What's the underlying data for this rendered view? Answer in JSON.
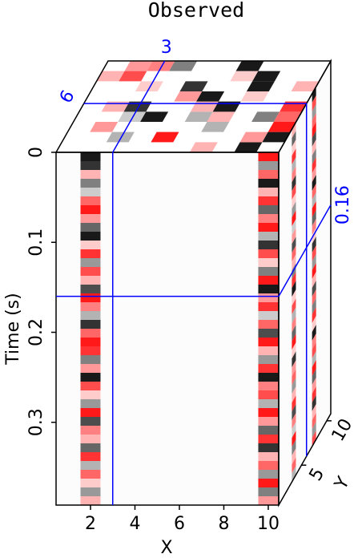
{
  "chart_data": {
    "type": "cube",
    "title": "Observed",
    "xlabel": "X",
    "ylabel": "Time (s)",
    "zlabel": "Y",
    "xlim": [
      0.45,
      10.47
    ],
    "xticks": [
      2,
      4,
      6,
      8,
      10
    ],
    "ylim": [
      0,
      0.392
    ],
    "yticks": [
      0,
      0.1,
      0.2,
      0.3
    ],
    "zlim": [
      0.5,
      10.8
    ],
    "zticks": [
      5,
      10
    ],
    "slices": {
      "x": 3,
      "y": 6,
      "time": 0.16
    },
    "slice_color": "#0000ff",
    "front_traces": [
      {
        "x": 2,
        "values": [
          -0.9,
          -0.8,
          0.3,
          -0.5,
          -0.2,
          0.6,
          0.9,
          0.4,
          -0.6,
          -0.9,
          0.2,
          0.8,
          -0.4,
          0.7,
          0.3,
          -0.7,
          0.9,
          0.5,
          -0.3,
          -0.8,
          0.6,
          0.9,
          0.8,
          -0.5,
          0.4,
          -0.9,
          0.7,
          0.2,
          -0.4,
          0.9,
          -0.7,
          0.5,
          0.3,
          -0.6,
          0.8,
          -0.3,
          0.6,
          0.2,
          -0.4,
          0.3
        ]
      },
      {
        "x": 10,
        "values": [
          0.9,
          -0.4,
          0.6,
          -0.9,
          0.3,
          0.8,
          -0.6,
          0.5,
          0.9,
          -0.3,
          -0.8,
          0.7,
          0.2,
          -0.5,
          0.9,
          -0.9,
          0.4,
          0.8,
          -0.2,
          0.6,
          -0.7,
          0.9,
          0.3,
          -0.4,
          0.8,
          -0.9,
          0.5,
          0.7,
          -0.3,
          0.9,
          0.4,
          -0.6,
          0.8,
          -0.8,
          0.3,
          0.6,
          -0.4,
          0.9,
          -0.5,
          0.4
        ]
      }
    ],
    "side_traces": [
      {
        "y": 3.5,
        "values": [
          0.3,
          -0.6,
          0.2,
          0.8,
          -0.3,
          0.5,
          -0.8,
          0.7,
          0.2,
          -0.4,
          0.9,
          -0.2,
          0.4,
          -0.7,
          0.6,
          0.3,
          -0.5,
          0.8,
          -0.9,
          0.2,
          0.7,
          -0.3,
          0.5,
          -0.6,
          0.9,
          0.2,
          -0.8,
          0.4,
          0.6,
          -0.4,
          0.3,
          0.8,
          -0.7,
          0.5,
          -0.2,
          0.9,
          -0.5,
          0.3,
          0.6,
          -0.3
        ]
      },
      {
        "y": 7.5,
        "values": [
          -0.9,
          0.7,
          -0.4,
          0.6,
          0.9,
          -0.7,
          0.3,
          -0.5,
          0.8,
          0.4,
          -0.9,
          0.6,
          -0.3,
          0.9,
          -0.6,
          0.5,
          0.2,
          -0.8,
          0.7,
          -0.4,
          0.9,
          0.3,
          -0.7,
          0.6,
          -0.5,
          0.8,
          0.2,
          -0.9,
          0.5,
          0.7,
          -0.3,
          0.9,
          -0.6,
          0.4,
          0.8,
          -0.8,
          0.3,
          0.6,
          -0.4,
          0.7
        ]
      }
    ],
    "top_cells": [
      [
        0,
        0,
        0,
        0,
        0,
        0,
        0.3,
        0,
        -0.9,
        0
      ],
      [
        0,
        0,
        -0.3,
        0,
        0.9,
        0,
        0,
        0,
        0.4,
        -0.9
      ],
      [
        0,
        0.4,
        0,
        0,
        0,
        0,
        -0.3,
        0,
        0,
        0.9
      ],
      [
        0,
        0,
        -0.2,
        -0.9,
        0,
        -0.3,
        0.3,
        0,
        -0.5,
        0.6
      ],
      [
        0,
        0.3,
        -0.8,
        0,
        0,
        0.3,
        -0.9,
        0,
        0,
        0.8
      ],
      [
        0,
        0,
        0,
        0,
        0.4,
        -0.9,
        0,
        0.2,
        0,
        0
      ],
      [
        0,
        0,
        0.2,
        0,
        -0.8,
        0,
        0,
        -0.9,
        0,
        0.3
      ],
      [
        0.3,
        0.7,
        0,
        0,
        0,
        0,
        0.2,
        -0.9,
        0,
        0
      ],
      [
        0,
        0.4,
        0.5,
        -0.5,
        0,
        0,
        -0.9,
        0,
        0,
        0
      ]
    ]
  }
}
